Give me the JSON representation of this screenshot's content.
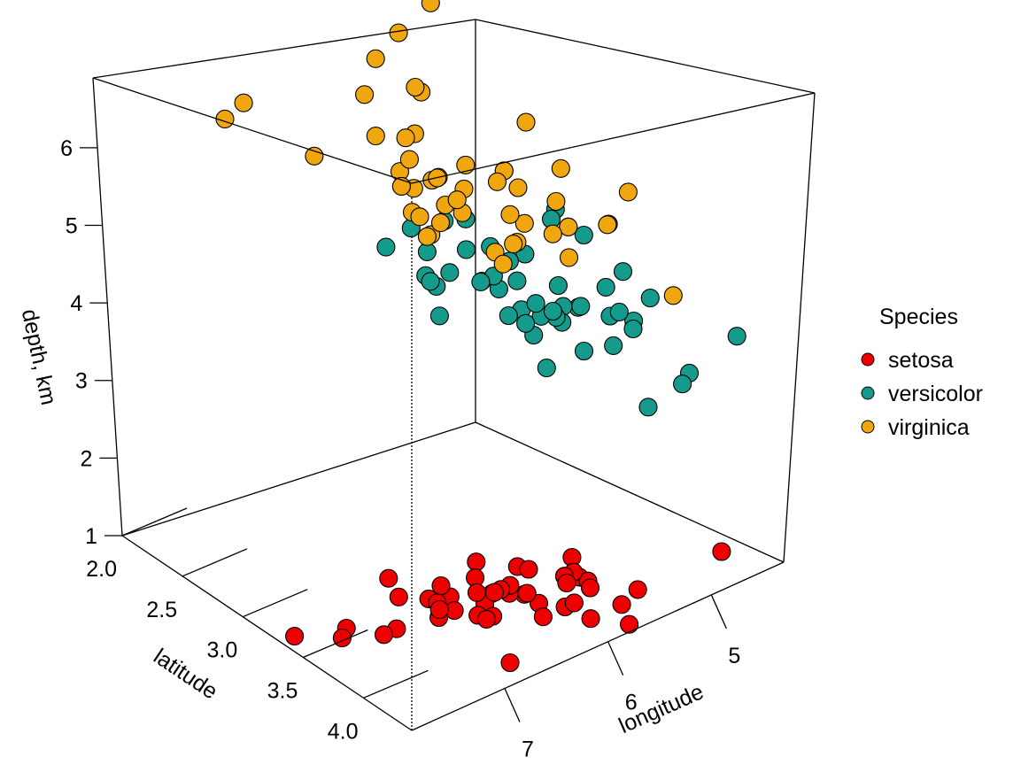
{
  "chart_data": {
    "type": "scatter",
    "x_label": "longitude",
    "y_label": "latitude",
    "z_label": "depth, km",
    "x_ticks": [
      "5",
      "6",
      "7"
    ],
    "y_ticks": [
      "2.0",
      "2.5",
      "3.0",
      "3.5",
      "4.0"
    ],
    "z_ticks": [
      "1",
      "2",
      "3",
      "4",
      "5",
      "6"
    ],
    "legend": {
      "title": "Species",
      "entries": [
        {
          "label": "setosa",
          "color": "#ee0000"
        },
        {
          "label": "versicolor",
          "color": "#159b8b"
        },
        {
          "label": "virginica",
          "color": "#f0a70f"
        }
      ]
    },
    "series": [
      {
        "name": "setosa",
        "color": "#ee0000",
        "points": [
          [
            5.1,
            3.5,
            1.4
          ],
          [
            4.9,
            3.0,
            1.4
          ],
          [
            4.7,
            3.2,
            1.3
          ],
          [
            4.6,
            3.1,
            1.5
          ],
          [
            5.0,
            3.6,
            1.4
          ],
          [
            5.4,
            3.9,
            1.7
          ],
          [
            4.6,
            3.4,
            1.4
          ],
          [
            5.0,
            3.4,
            1.5
          ],
          [
            4.4,
            2.9,
            1.4
          ],
          [
            4.9,
            3.1,
            1.5
          ],
          [
            5.4,
            3.7,
            1.5
          ],
          [
            4.8,
            3.4,
            1.6
          ],
          [
            4.8,
            3.0,
            1.4
          ],
          [
            4.3,
            3.0,
            1.1
          ],
          [
            5.8,
            4.0,
            1.2
          ],
          [
            5.7,
            4.4,
            1.5
          ],
          [
            5.4,
            3.9,
            1.3
          ],
          [
            5.1,
            3.5,
            1.4
          ],
          [
            5.7,
            3.8,
            1.7
          ],
          [
            5.1,
            3.8,
            1.5
          ],
          [
            5.4,
            3.4,
            1.7
          ],
          [
            5.1,
            3.7,
            1.5
          ],
          [
            4.6,
            3.6,
            1.0
          ],
          [
            5.1,
            3.3,
            1.7
          ],
          [
            4.8,
            3.4,
            1.9
          ],
          [
            5.0,
            3.0,
            1.6
          ],
          [
            5.0,
            3.4,
            1.6
          ],
          [
            5.2,
            3.5,
            1.5
          ],
          [
            5.2,
            3.4,
            1.4
          ],
          [
            4.7,
            3.2,
            1.6
          ],
          [
            4.8,
            3.1,
            1.6
          ],
          [
            5.4,
            3.4,
            1.5
          ],
          [
            5.2,
            4.1,
            1.5
          ],
          [
            5.5,
            4.2,
            1.4
          ],
          [
            4.9,
            3.1,
            1.5
          ],
          [
            5.0,
            3.2,
            1.2
          ],
          [
            5.5,
            3.5,
            1.3
          ],
          [
            4.9,
            3.6,
            1.4
          ],
          [
            4.4,
            3.0,
            1.3
          ],
          [
            5.1,
            3.4,
            1.5
          ],
          [
            5.0,
            3.5,
            1.3
          ],
          [
            4.5,
            2.3,
            1.3
          ],
          [
            4.4,
            3.2,
            1.3
          ],
          [
            5.0,
            3.5,
            1.6
          ],
          [
            5.1,
            3.8,
            1.9
          ],
          [
            4.8,
            3.0,
            1.4
          ],
          [
            5.1,
            3.8,
            1.6
          ],
          [
            4.6,
            3.2,
            1.4
          ],
          [
            5.3,
            3.7,
            1.5
          ],
          [
            5.0,
            3.3,
            1.4
          ]
        ]
      },
      {
        "name": "versicolor",
        "color": "#159b8b",
        "points": [
          [
            7.0,
            3.2,
            4.7
          ],
          [
            6.4,
            3.2,
            4.5
          ],
          [
            6.9,
            3.1,
            4.9
          ],
          [
            5.5,
            2.3,
            4.0
          ],
          [
            6.5,
            2.8,
            4.6
          ],
          [
            5.7,
            2.8,
            4.5
          ],
          [
            6.3,
            3.3,
            4.7
          ],
          [
            4.9,
            2.4,
            3.3
          ],
          [
            6.6,
            2.9,
            4.6
          ],
          [
            5.2,
            2.7,
            3.9
          ],
          [
            5.0,
            2.0,
            3.5
          ],
          [
            5.9,
            3.0,
            4.2
          ],
          [
            6.0,
            2.2,
            4.0
          ],
          [
            6.1,
            2.9,
            4.7
          ],
          [
            5.6,
            2.9,
            3.6
          ],
          [
            6.7,
            3.1,
            4.4
          ],
          [
            5.6,
            3.0,
            4.5
          ],
          [
            5.8,
            2.7,
            4.1
          ],
          [
            6.2,
            2.2,
            4.5
          ],
          [
            5.6,
            2.5,
            3.9
          ],
          [
            5.9,
            3.2,
            4.8
          ],
          [
            6.1,
            2.8,
            4.0
          ],
          [
            6.3,
            2.5,
            4.9
          ],
          [
            6.1,
            2.8,
            4.7
          ],
          [
            6.4,
            2.9,
            4.3
          ],
          [
            6.6,
            3.0,
            4.4
          ],
          [
            6.8,
            2.8,
            4.8
          ],
          [
            6.7,
            3.0,
            5.0
          ],
          [
            6.0,
            2.9,
            4.5
          ],
          [
            5.7,
            2.6,
            3.5
          ],
          [
            5.5,
            2.4,
            3.8
          ],
          [
            5.5,
            2.4,
            3.7
          ],
          [
            5.8,
            2.7,
            3.9
          ],
          [
            6.0,
            2.7,
            5.1
          ],
          [
            5.4,
            3.0,
            4.5
          ],
          [
            6.0,
            3.4,
            4.5
          ],
          [
            6.7,
            3.1,
            4.7
          ],
          [
            6.3,
            2.3,
            4.4
          ],
          [
            5.6,
            3.0,
            4.1
          ],
          [
            5.5,
            2.5,
            4.0
          ],
          [
            5.5,
            2.6,
            4.4
          ],
          [
            6.1,
            3.0,
            4.6
          ],
          [
            5.8,
            2.6,
            4.0
          ],
          [
            5.0,
            2.3,
            3.3
          ],
          [
            5.6,
            2.7,
            4.2
          ],
          [
            5.7,
            3.0,
            4.2
          ],
          [
            5.7,
            2.9,
            4.2
          ],
          [
            6.2,
            2.9,
            4.3
          ],
          [
            5.1,
            2.5,
            3.0
          ],
          [
            5.7,
            2.8,
            4.1
          ]
        ]
      },
      {
        "name": "virginica",
        "color": "#f0a70f",
        "points": [
          [
            6.3,
            3.3,
            6.0
          ],
          [
            5.8,
            2.7,
            5.1
          ],
          [
            7.1,
            3.0,
            5.9
          ],
          [
            6.3,
            2.9,
            5.6
          ],
          [
            6.5,
            3.0,
            5.8
          ],
          [
            7.6,
            3.0,
            6.6
          ],
          [
            4.9,
            2.5,
            4.5
          ],
          [
            7.3,
            2.9,
            6.3
          ],
          [
            6.7,
            2.5,
            5.8
          ],
          [
            7.2,
            3.6,
            6.1
          ],
          [
            6.5,
            3.2,
            5.1
          ],
          [
            6.4,
            2.7,
            5.3
          ],
          [
            6.8,
            3.0,
            5.5
          ],
          [
            5.7,
            2.5,
            5.0
          ],
          [
            5.8,
            2.8,
            5.1
          ],
          [
            6.4,
            3.2,
            5.3
          ],
          [
            6.5,
            3.0,
            5.5
          ],
          [
            7.7,
            3.8,
            6.7
          ],
          [
            7.7,
            2.6,
            6.9
          ],
          [
            6.0,
            2.2,
            5.0
          ],
          [
            6.9,
            3.2,
            5.7
          ],
          [
            5.6,
            2.8,
            4.9
          ],
          [
            7.7,
            2.8,
            6.7
          ],
          [
            6.3,
            2.7,
            4.9
          ],
          [
            6.7,
            3.3,
            5.7
          ],
          [
            7.2,
            3.2,
            6.0
          ],
          [
            6.2,
            2.8,
            4.8
          ],
          [
            6.1,
            3.0,
            4.9
          ],
          [
            6.4,
            2.8,
            5.6
          ],
          [
            7.2,
            3.0,
            5.8
          ],
          [
            7.4,
            2.8,
            6.1
          ],
          [
            7.9,
            3.8,
            6.4
          ],
          [
            6.4,
            2.8,
            5.6
          ],
          [
            6.3,
            2.8,
            5.1
          ],
          [
            6.1,
            2.6,
            5.6
          ],
          [
            7.7,
            3.0,
            6.1
          ],
          [
            6.3,
            3.4,
            5.6
          ],
          [
            6.4,
            3.1,
            5.5
          ],
          [
            6.0,
            3.0,
            4.8
          ],
          [
            6.9,
            3.1,
            5.4
          ],
          [
            6.7,
            3.1,
            5.6
          ],
          [
            6.9,
            3.1,
            5.1
          ],
          [
            5.8,
            2.7,
            5.1
          ],
          [
            6.8,
            3.2,
            5.9
          ],
          [
            6.7,
            3.3,
            5.7
          ],
          [
            6.7,
            3.0,
            5.2
          ],
          [
            6.3,
            2.5,
            5.0
          ],
          [
            6.5,
            3.0,
            5.2
          ],
          [
            6.2,
            3.4,
            5.4
          ],
          [
            5.9,
            3.0,
            5.1
          ]
        ]
      }
    ]
  }
}
